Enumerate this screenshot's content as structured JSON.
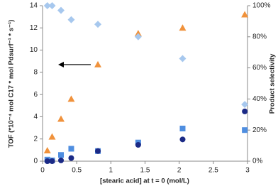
{
  "chart_data": {
    "type": "scatter",
    "x_label": "[stearic acid] at t = 0 (mol/L)",
    "y_label": "TOF (*10⁻⁴ mol C17 * mol Pdsurf⁻¹ * s⁻¹)",
    "y2_label": "Product selectivity",
    "x": [
      0.07,
      0.14,
      0.27,
      0.42,
      0.81,
      1.4,
      2.05,
      2.96
    ],
    "series": [
      {
        "color": "#f0923c",
        "marker": "triangle",
        "values": [
          0.96,
          2.2,
          3.8,
          5.6,
          8.7,
          11.5,
          12.0,
          13.2
        ]
      },
      {
        "color": "#a7c8ee",
        "marker": "diamond",
        "axis": "y2",
        "values": [
          100,
          100,
          97,
          91,
          88,
          80,
          66,
          36.5
        ]
      },
      {
        "color": "#4f8ee0",
        "marker": "square",
        "axis": "y2",
        "values": [
          1,
          0.5,
          4,
          8,
          6.5,
          12,
          21,
          20
        ]
      },
      {
        "color": "#1b2a86",
        "marker": "circle",
        "axis": "y2",
        "values": [
          0,
          0,
          0.5,
          2,
          6.5,
          10.5,
          14,
          32
        ]
      }
    ],
    "xlim": [
      0,
      3
    ],
    "xticks": [
      0,
      0.5,
      1,
      1.5,
      2,
      2.5,
      3
    ],
    "ylim": [
      0,
      14
    ],
    "yticks": [
      0,
      2,
      4,
      6,
      8,
      10,
      12,
      14
    ],
    "y2lim": [
      0,
      100
    ],
    "y2ticks": [
      {
        "value": 0,
        "label": "0%"
      },
      {
        "value": 20,
        "label": "20%"
      },
      {
        "value": 40,
        "label": "40%"
      },
      {
        "value": 60,
        "label": "60%"
      },
      {
        "value": 80,
        "label": "80%"
      },
      {
        "value": 100,
        "label": "100%"
      }
    ],
    "grid": false
  }
}
